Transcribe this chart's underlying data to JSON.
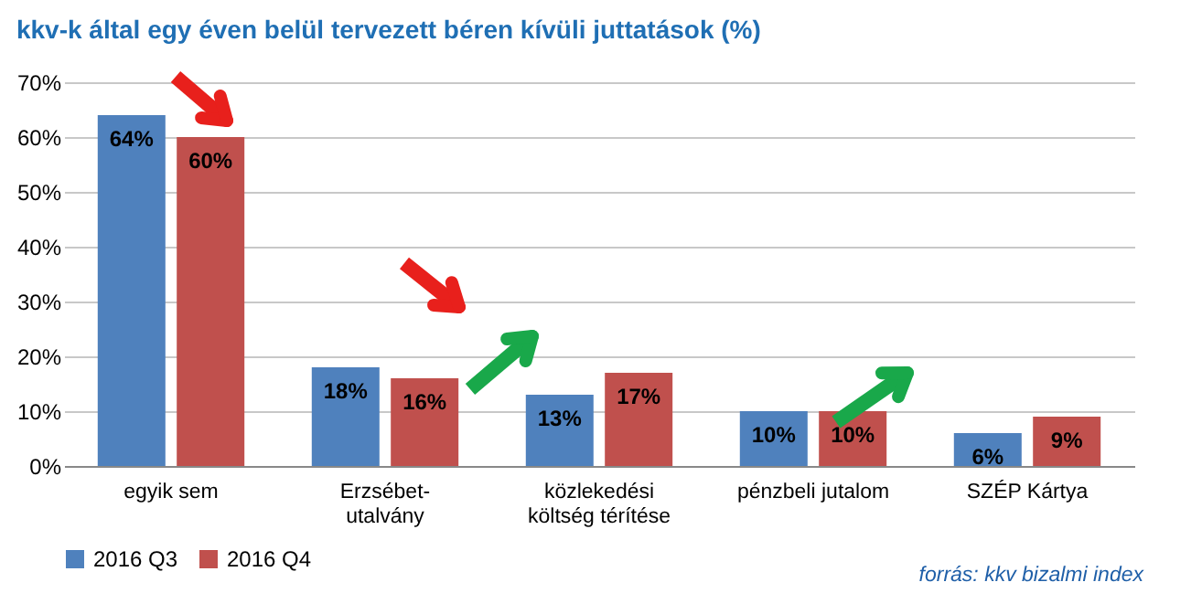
{
  "chart_data": {
    "type": "bar",
    "title": "kkv-k által egy éven belül tervezett béren kívüli juttatások (%)",
    "categories": [
      "egyik sem",
      "Erzsébet-utalvány",
      "közlekedési költség térítése",
      "pénzbeli jutalom",
      "SZÉP Kártya"
    ],
    "series": [
      {
        "name": "2016 Q3",
        "color": "#4f81bd",
        "values": [
          64,
          18,
          13,
          10,
          6
        ],
        "value_labels": [
          "64%",
          "18%",
          "13%",
          "10%",
          "6%"
        ]
      },
      {
        "name": "2016 Q4",
        "color": "#c0504d",
        "values": [
          60,
          16,
          17,
          10,
          9
        ],
        "value_labels": [
          "60%",
          "16%",
          "17%",
          "10%",
          "9%"
        ]
      }
    ],
    "ylim": [
      0,
      70
    ],
    "yticks": [
      {
        "value": 0,
        "label": "0%"
      },
      {
        "value": 10,
        "label": "10%"
      },
      {
        "value": 20,
        "label": "20%"
      },
      {
        "value": 30,
        "label": "30%"
      },
      {
        "value": 40,
        "label": "40%"
      },
      {
        "value": 50,
        "label": "50%"
      },
      {
        "value": 60,
        "label": "60%"
      },
      {
        "value": 70,
        "label": "70%"
      }
    ],
    "grid": "y",
    "legend": "bottom left",
    "annotations": [
      "forrás: kkv bizalmi index"
    ]
  }
}
